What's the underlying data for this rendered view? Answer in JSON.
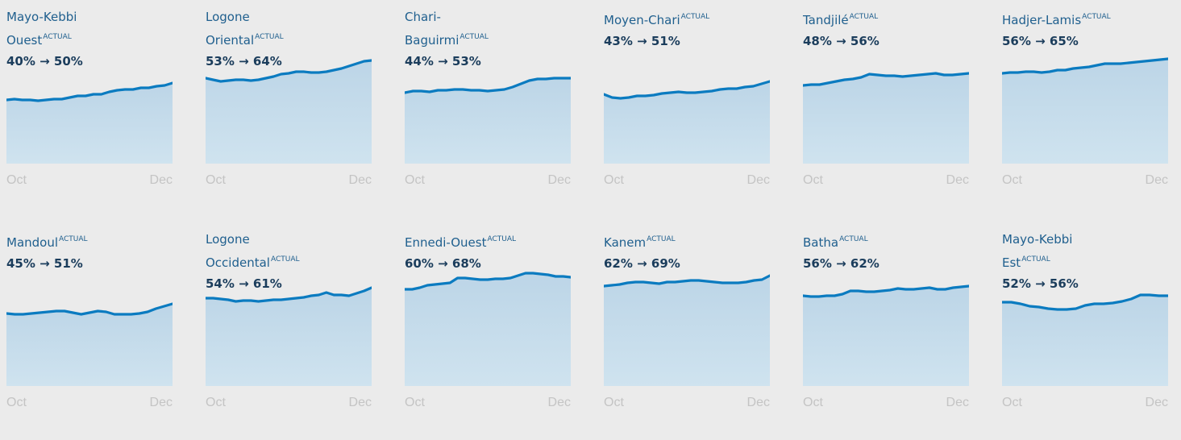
{
  "chart_data": [
    {
      "type": "area",
      "title": [
        "Mayo-Kebbi",
        "Ouest"
      ],
      "badge": "ACTUAL",
      "summary": "40% → 50%",
      "x_labels": [
        "Oct",
        "Dec"
      ],
      "ylim": [
        0,
        100
      ],
      "color": "#0b7bc0",
      "values": [
        39.5,
        40,
        39.5,
        39.5,
        39,
        39.5,
        40,
        40,
        41,
        42,
        42,
        43,
        43,
        44.5,
        45.5,
        46,
        46,
        47,
        47,
        48,
        48.5,
        50
      ]
    },
    {
      "type": "area",
      "title": [
        "Logone",
        "Oriental"
      ],
      "badge": "ACTUAL",
      "summary": "53% → 64%",
      "x_labels": [
        "Oct",
        "Dec"
      ],
      "ylim": [
        0,
        100
      ],
      "color": "#0b7bc0",
      "values": [
        53,
        52,
        51,
        51.5,
        52,
        52,
        51.5,
        52,
        53,
        54,
        55.5,
        56,
        57,
        57,
        56.5,
        56.5,
        57,
        58,
        59,
        60.5,
        62,
        63.5,
        64
      ]
    },
    {
      "type": "area",
      "title": [
        "Chari-",
        "Baguirmi"
      ],
      "badge": "ACTUAL",
      "summary": "44% → 53%",
      "x_labels": [
        "Oct",
        "Dec"
      ],
      "ylim": [
        0,
        100
      ],
      "color": "#0b7bc0",
      "values": [
        44,
        45,
        45,
        44.5,
        45.5,
        45.5,
        46,
        46,
        45.5,
        45.5,
        45,
        45.5,
        46,
        47.5,
        49.5,
        51.5,
        52.5,
        52.5,
        53,
        53,
        53
      ]
    },
    {
      "type": "area",
      "title": [
        "Moyen-Chari"
      ],
      "badge": "ACTUAL",
      "summary": "43% → 51%",
      "x_labels": [
        "Oct",
        "Dec"
      ],
      "ylim": [
        0,
        100
      ],
      "color": "#0b7bc0",
      "values": [
        43,
        41,
        40.5,
        41,
        42,
        42,
        42.5,
        43.5,
        44,
        44.5,
        44,
        44,
        44.5,
        45,
        46,
        46.5,
        46.5,
        47.5,
        48,
        49.5,
        51
      ]
    },
    {
      "type": "area",
      "title": [
        "Tandjilé"
      ],
      "badge": "ACTUAL",
      "summary": "48% → 56%",
      "x_labels": [
        "Oct",
        "Dec"
      ],
      "ylim": [
        0,
        100
      ],
      "color": "#0b7bc0",
      "values": [
        48.5,
        49,
        49,
        50,
        51,
        52,
        52.5,
        53.5,
        55.5,
        55,
        54.5,
        54.5,
        54,
        54.5,
        55,
        55.5,
        56,
        55,
        55,
        55.5,
        56
      ]
    },
    {
      "type": "area",
      "title": [
        "Hadjer-Lamis"
      ],
      "badge": "ACTUAL",
      "summary": "56% → 65%",
      "x_labels": [
        "Oct",
        "Dec"
      ],
      "ylim": [
        0,
        100
      ],
      "color": "#0b7bc0",
      "values": [
        56,
        56.5,
        56.5,
        57,
        57,
        56.5,
        57,
        58,
        58,
        59,
        59.5,
        60,
        61,
        62,
        62,
        62,
        62.5,
        63,
        63.5,
        64,
        64.5,
        65
      ]
    },
    {
      "type": "area",
      "title": [
        "Mandoul"
      ],
      "badge": "ACTUAL",
      "summary": "45% → 51%",
      "x_labels": [
        "Oct",
        "Dec"
      ],
      "ylim": [
        0,
        100
      ],
      "color": "#0b7bc0",
      "values": [
        45,
        44.5,
        44.5,
        45,
        45.5,
        46,
        46.5,
        46.5,
        45.5,
        44.5,
        45.5,
        46.5,
        46,
        44.5,
        44.5,
        44.5,
        45,
        46,
        48,
        49.5,
        51
      ]
    },
    {
      "type": "area",
      "title": [
        "Logone",
        "Occidental"
      ],
      "badge": "ACTUAL",
      "summary": "54% → 61%",
      "x_labels": [
        "Oct",
        "Dec"
      ],
      "ylim": [
        0,
        100
      ],
      "color": "#0b7bc0",
      "values": [
        54.5,
        54.5,
        54,
        53.5,
        52.5,
        53,
        53,
        52.5,
        53,
        53.5,
        53.5,
        54,
        54.5,
        55,
        56,
        56.5,
        58,
        56.5,
        56.5,
        56,
        57.5,
        59,
        61
      ]
    },
    {
      "type": "area",
      "title": [
        "Ennedi-Ouest"
      ],
      "badge": "ACTUAL",
      "summary": "60% → 68%",
      "x_labels": [
        "Oct",
        "Dec"
      ],
      "ylim": [
        0,
        100
      ],
      "color": "#0b7bc0",
      "values": [
        60,
        60,
        61,
        62.5,
        63,
        63.5,
        64,
        67,
        67,
        66.5,
        66,
        66,
        66.5,
        66.5,
        67,
        68.5,
        70,
        70,
        69.5,
        69,
        68,
        68,
        67.5
      ]
    },
    {
      "type": "area",
      "title": [
        "Kanem"
      ],
      "badge": "ACTUAL",
      "summary": "62% → 69%",
      "x_labels": [
        "Oct",
        "Dec"
      ],
      "ylim": [
        0,
        100
      ],
      "color": "#0b7bc0",
      "values": [
        62,
        62.5,
        63,
        64,
        64.5,
        64.5,
        64,
        63.5,
        64.5,
        64.5,
        65,
        65.5,
        65.5,
        65,
        64.5,
        64,
        64,
        64,
        64.5,
        65.5,
        66,
        68.5
      ]
    },
    {
      "type": "area",
      "title": [
        "Batha"
      ],
      "badge": "ACTUAL",
      "summary": "56% → 62%",
      "x_labels": [
        "Oct",
        "Dec"
      ],
      "ylim": [
        0,
        100
      ],
      "color": "#0b7bc0",
      "values": [
        56,
        55.5,
        55.5,
        56,
        56,
        57,
        59,
        59,
        58.5,
        58.5,
        59,
        59.5,
        60.5,
        60,
        60,
        60.5,
        61,
        60,
        60,
        61,
        61.5,
        62
      ]
    },
    {
      "type": "area",
      "title": [
        "Mayo-Kebbi",
        "Est"
      ],
      "badge": "ACTUAL",
      "summary": "52% → 56%",
      "x_labels": [
        "Oct",
        "Dec"
      ],
      "ylim": [
        0,
        100
      ],
      "color": "#0b7bc0",
      "values": [
        52,
        52,
        51,
        49.5,
        49,
        48,
        47.5,
        47.5,
        48,
        50,
        51,
        51,
        51.5,
        52.5,
        54,
        56.5,
        56.5,
        56,
        56
      ]
    }
  ]
}
